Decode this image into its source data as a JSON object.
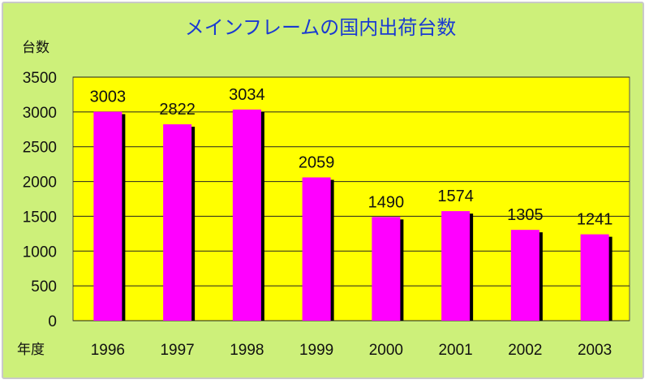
{
  "chart_data": {
    "type": "bar",
    "title": "メインフレームの国内出荷台数",
    "ylabel": "台数",
    "xlabel": "年度",
    "categories": [
      "1996",
      "1997",
      "1998",
      "1999",
      "2000",
      "2001",
      "2002",
      "2003"
    ],
    "values": [
      3003,
      2822,
      3034,
      2059,
      1490,
      1574,
      1305,
      1241
    ],
    "ylim": [
      0,
      3500
    ],
    "yticks": [
      0,
      500,
      1000,
      1500,
      2000,
      2500,
      3000,
      3500
    ],
    "grid": true,
    "legend": "none"
  },
  "colors": {
    "background": "#cdf07a",
    "plot_area": "#ffff00",
    "bar": "#ff00ff",
    "bar_shadow": "#000000",
    "title": "#1a3ad1"
  }
}
